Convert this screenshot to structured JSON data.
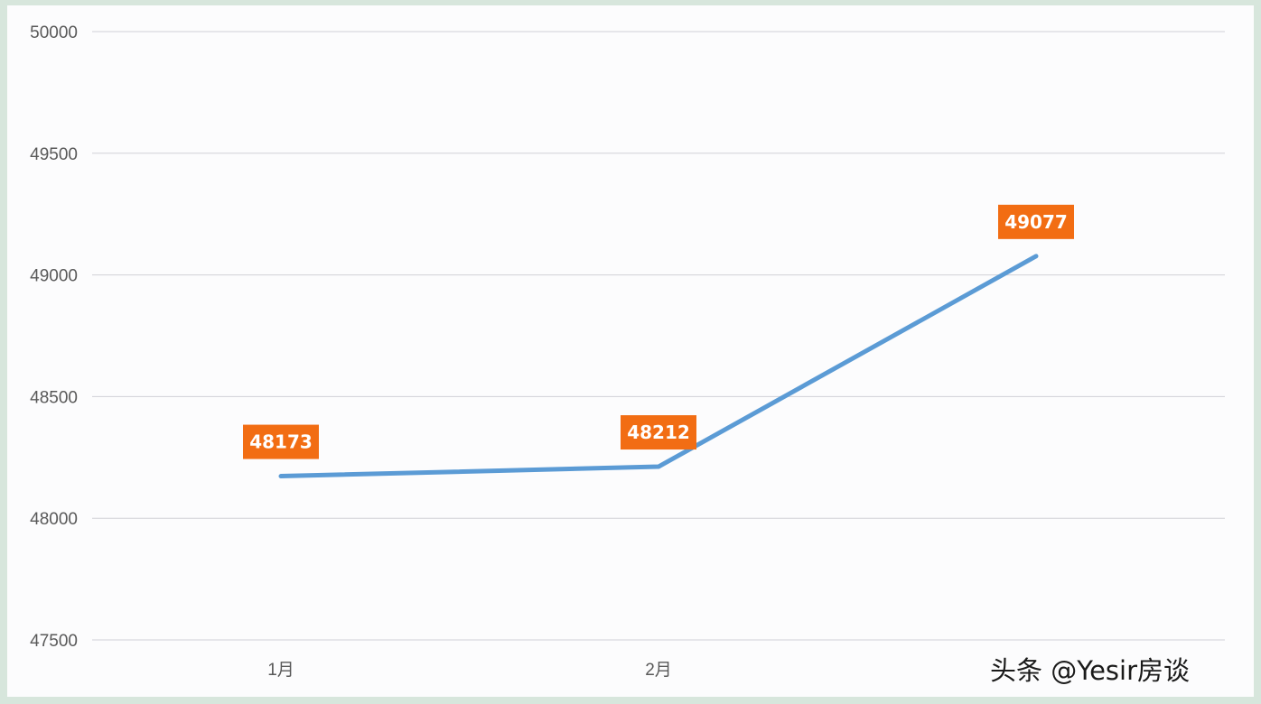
{
  "chart_data": {
    "type": "line",
    "categories": [
      "1月",
      "2月",
      ""
    ],
    "series": [
      {
        "values": [
          48173,
          48212,
          49077
        ],
        "color": "#5b9bd5"
      }
    ],
    "data_labels": [
      "48173",
      "48212",
      "49077"
    ],
    "data_label_color": "#f26d13",
    "yticks": [
      "50000",
      "49500",
      "49000",
      "48500",
      "48000",
      "47500"
    ],
    "ytick_values": [
      50000,
      49500,
      49000,
      48500,
      48000,
      47500
    ],
    "ylim": [
      47500,
      50000
    ],
    "grid": true,
    "legend": "none",
    "title": "",
    "xlabel": "",
    "ylabel": ""
  },
  "watermark": {
    "text": "头条 @Yesir房谈"
  }
}
